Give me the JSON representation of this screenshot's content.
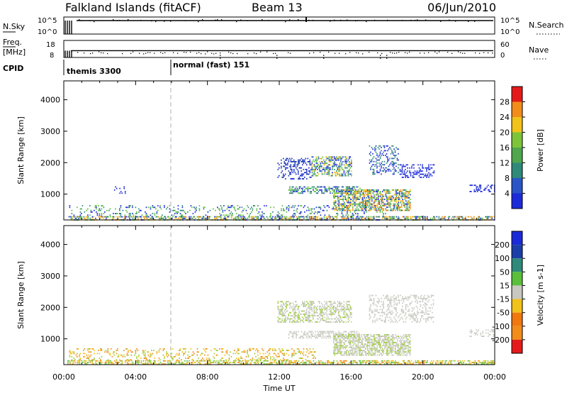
{
  "header": {
    "radar": "Falkland Islands (fitACF)",
    "beam": "Beam 13",
    "date": "06/Jun/2010"
  },
  "side_labels": {
    "nsky": "N.Sky",
    "freq_top": "Freq.",
    "freq_unit": "[MHz]",
    "cpid": "CPID",
    "nsearch": "N.Search",
    "nave": "Nave"
  },
  "cpid_segments": [
    {
      "label": "themis 3300",
      "start_hour": 0.3
    },
    {
      "label": "normal (fast) 151",
      "start_hour": 6.0
    }
  ],
  "noise_panel": {
    "left_ticks": [
      "10^5",
      "10^0"
    ],
    "right_ticks": [
      "10^5",
      "10^0"
    ]
  },
  "freq_panel": {
    "left_ticks": [
      18,
      8
    ],
    "right_ticks": [
      60,
      0
    ],
    "freq_mhz": 12,
    "nave": 28
  },
  "colors": {
    "blue": "#1b2bd9",
    "navy": "#1c3ea8",
    "teal": "#2f8a7a",
    "green": "#5abf3a",
    "lime": "#9ccc3a",
    "yellow": "#f0c21a",
    "orange": "#f28c1a",
    "orange2": "#f0780f",
    "red": "#e41a1a",
    "gray": "#c8c8c0",
    "axis": "#000000"
  },
  "chart_data": [
    {
      "type": "heatmap",
      "panel": "power",
      "ylabel": "Slant Range [km]",
      "xlabel": "",
      "xlim_hours": [
        0,
        24
      ],
      "ylim": [
        180,
        4600
      ],
      "yticks": [
        1000,
        2000,
        3000,
        4000
      ],
      "colorbar": {
        "label": "Power [dB]",
        "ticks": [
          4,
          8,
          12,
          16,
          20,
          24,
          28
        ],
        "colors": [
          "#1b2bd9",
          "#2a55c6",
          "#2f8a7a",
          "#4fa64d",
          "#7dc43a",
          "#f0c21a",
          "#f28c1a",
          "#e41a1a"
        ]
      },
      "regions": [
        {
          "t": [
            0.2,
            24.0
          ],
          "r": [
            180,
            300
          ],
          "density": 0.55,
          "colors": [
            "#1b2bd9",
            "#2f8a7a",
            "#5abf3a",
            "#f28c1a",
            "#f0c21a"
          ]
        },
        {
          "t": [
            0.3,
            18.0
          ],
          "r": [
            300,
            650
          ],
          "density": 0.18,
          "colors": [
            "#1b2bd9",
            "#2f8a7a",
            "#5abf3a"
          ]
        },
        {
          "t": [
            11.9,
            13.8
          ],
          "r": [
            1500,
            2150
          ],
          "density": 0.35,
          "colors": [
            "#1b2bd9",
            "#1c3ea8"
          ]
        },
        {
          "t": [
            13.8,
            16.0
          ],
          "r": [
            1600,
            2200
          ],
          "density": 0.5,
          "colors": [
            "#1b2bd9",
            "#2f8a7a",
            "#5abf3a",
            "#f0c21a"
          ]
        },
        {
          "t": [
            12.5,
            16.5
          ],
          "r": [
            1050,
            1250
          ],
          "density": 0.55,
          "colors": [
            "#1b2bd9",
            "#2f8a7a",
            "#5abf3a"
          ]
        },
        {
          "t": [
            15.0,
            19.3
          ],
          "r": [
            500,
            1150
          ],
          "density": 0.6,
          "colors": [
            "#1b2bd9",
            "#2f8a7a",
            "#5abf3a",
            "#f0c21a",
            "#f28c1a"
          ]
        },
        {
          "t": [
            17.0,
            18.6
          ],
          "r": [
            1650,
            2550
          ],
          "density": 0.3,
          "colors": [
            "#1b2bd9",
            "#2f8a7a"
          ]
        },
        {
          "t": [
            18.7,
            20.6
          ],
          "r": [
            1550,
            1950
          ],
          "density": 0.4,
          "colors": [
            "#1b2bd9"
          ]
        },
        {
          "t": [
            22.6,
            24.0
          ],
          "r": [
            1100,
            1300
          ],
          "density": 0.3,
          "colors": [
            "#1b2bd9"
          ]
        },
        {
          "t": [
            2.8,
            3.4
          ],
          "r": [
            1050,
            1250
          ],
          "density": 0.25,
          "colors": [
            "#1b2bd9"
          ]
        }
      ]
    },
    {
      "type": "heatmap",
      "panel": "velocity",
      "ylabel": "Slant Range [km]",
      "xlabel": "Time UT",
      "xlim_hours": [
        0,
        24
      ],
      "ylim": [
        180,
        4600
      ],
      "yticks": [
        1000,
        2000,
        3000,
        4000
      ],
      "xticks": [
        "00:00",
        "04:00",
        "08:00",
        "12:00",
        "16:00",
        "20:00",
        "00:00"
      ],
      "colorbar": {
        "label": "Velocity [m s-1]",
        "ticks": [
          "200",
          "100",
          "50",
          "15",
          "-15",
          "-50",
          "-100",
          "-200"
        ],
        "colors": [
          "#1b2bd9",
          "#1c3ea8",
          "#2f8a7a",
          "#5abf3a",
          "#c8c8c0",
          "#f0c21a",
          "#f0780f",
          "#f28c1a",
          "#e41a1a"
        ]
      },
      "regions": [
        {
          "t": [
            0.2,
            24.0
          ],
          "r": [
            180,
            320
          ],
          "density": 0.55,
          "colors": [
            "#f0c21a",
            "#f28c1a",
            "#5abf3a",
            "#9ccc3a"
          ]
        },
        {
          "t": [
            0.3,
            14.0
          ],
          "r": [
            320,
            700
          ],
          "density": 0.22,
          "colors": [
            "#f0c21a",
            "#f28c1a",
            "#9ccc3a"
          ]
        },
        {
          "t": [
            11.9,
            16.0
          ],
          "r": [
            1550,
            2200
          ],
          "density": 0.45,
          "colors": [
            "#c8c8c0",
            "#c8c8c0",
            "#9ccc3a"
          ]
        },
        {
          "t": [
            12.5,
            16.5
          ],
          "r": [
            1050,
            1250
          ],
          "density": 0.55,
          "colors": [
            "#c8c8c0"
          ]
        },
        {
          "t": [
            15.0,
            19.3
          ],
          "r": [
            500,
            1150
          ],
          "density": 0.65,
          "colors": [
            "#c8c8c0",
            "#c8c8c0",
            "#9ccc3a"
          ]
        },
        {
          "t": [
            17.0,
            20.6
          ],
          "r": [
            1550,
            2400
          ],
          "density": 0.3,
          "colors": [
            "#c8c8c0"
          ]
        },
        {
          "t": [
            22.6,
            24.0
          ],
          "r": [
            1100,
            1300
          ],
          "density": 0.25,
          "colors": [
            "#c8c8c0"
          ]
        }
      ]
    }
  ]
}
